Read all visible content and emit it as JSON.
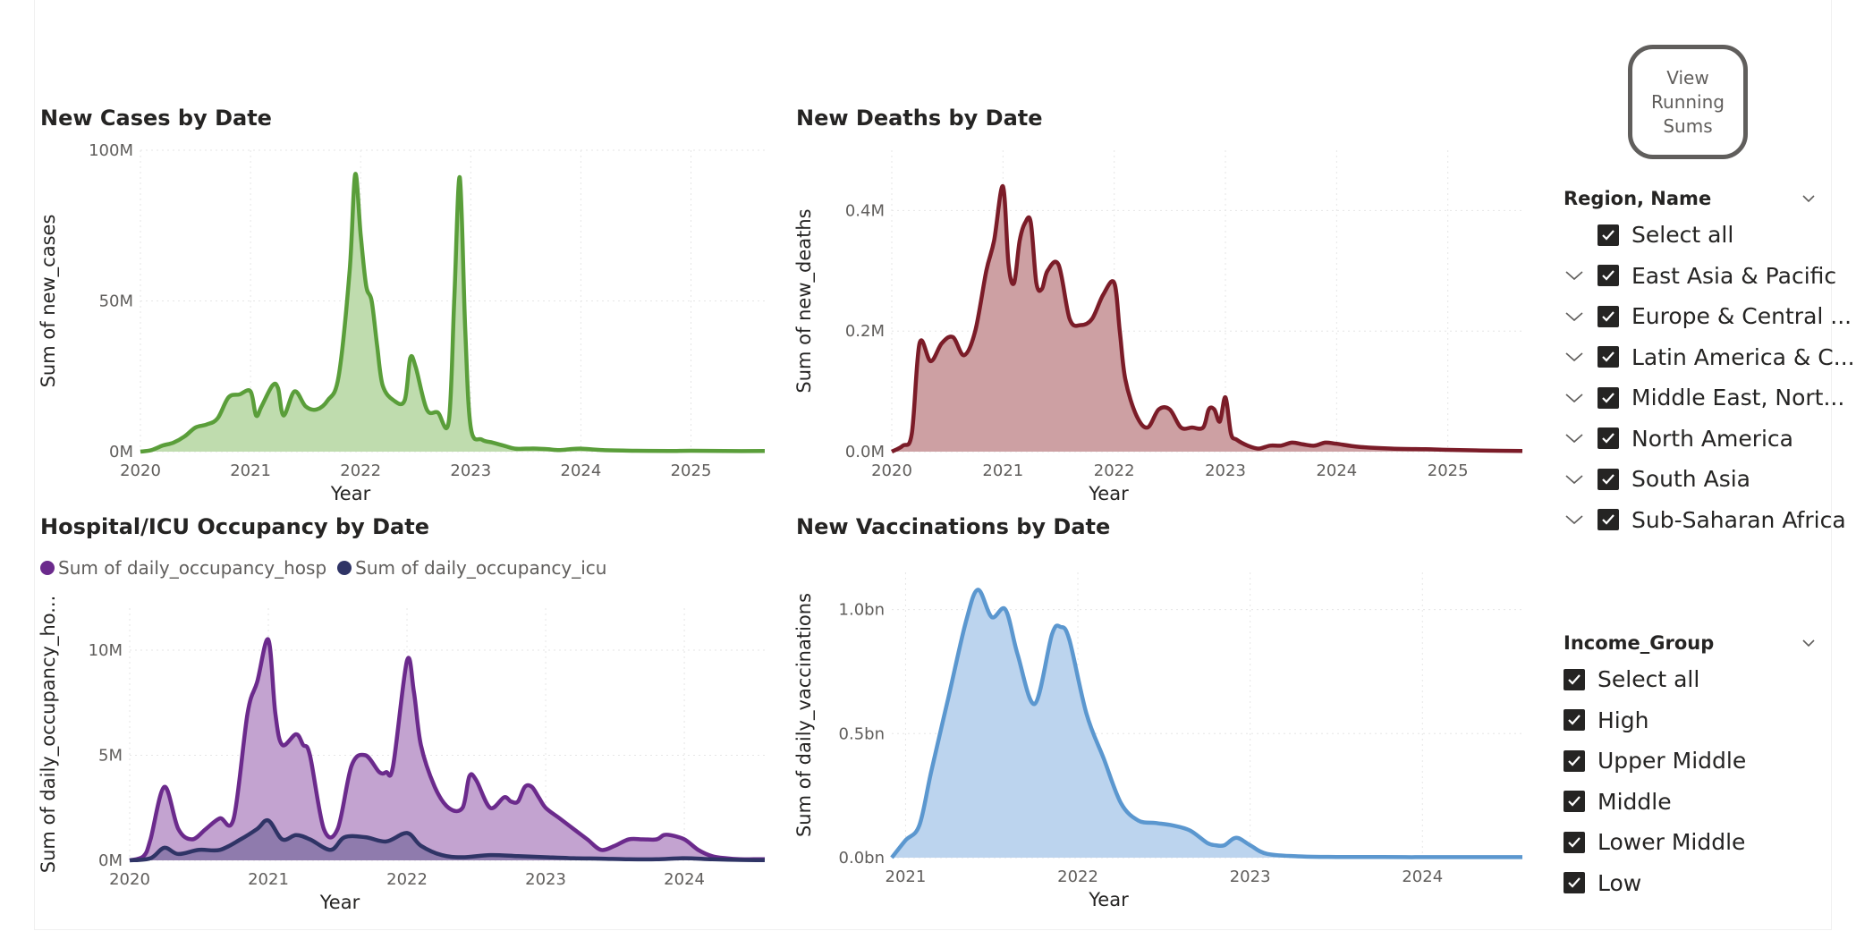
{
  "charts": {
    "cases": {
      "title": "New Cases by Date",
      "ylabel": "Sum of new_cases",
      "xlabel": "Year",
      "y_ticks": [
        "0M",
        "50M",
        "100M"
      ],
      "x_ticks": [
        "2020",
        "2021",
        "2022",
        "2023",
        "2024",
        "2025"
      ]
    },
    "deaths": {
      "title": "New Deaths by Date",
      "ylabel": "Sum of new_deaths",
      "xlabel": "Year",
      "y_ticks": [
        "0.0M",
        "0.2M",
        "0.4M"
      ],
      "x_ticks": [
        "2020",
        "2021",
        "2022",
        "2023",
        "2024",
        "2025"
      ]
    },
    "hosp": {
      "title": "Hospital/ICU Occupancy by Date",
      "ylabel": "Sum of daily_occupancy_ho...",
      "xlabel": "Year",
      "y_ticks": [
        "0M",
        "5M",
        "10M"
      ],
      "x_ticks": [
        "2020",
        "2021",
        "2022",
        "2023",
        "2024"
      ],
      "legend": [
        "Sum of daily_occupancy_hosp",
        "Sum of daily_occupancy_icu"
      ]
    },
    "vacc": {
      "title": "New Vaccinations by Date",
      "ylabel": "Sum of daily_vaccinations",
      "xlabel": "Year",
      "y_ticks": [
        "0.0bn",
        "0.5bn",
        "1.0bn"
      ],
      "x_ticks": [
        "2021",
        "2022",
        "2023",
        "2024"
      ]
    }
  },
  "colors": {
    "cases_line": "#5a9e3a",
    "cases_fill": "#bfdcae",
    "deaths_line": "#7b1c28",
    "deaths_fill": "#cda0a3",
    "hosp_line": "#6b2a8c",
    "hosp_fill": "#c3a3d0",
    "icu_line": "#2f3466",
    "icu_fill": "#8a77a8",
    "vacc_line": "#5b97cf",
    "vacc_fill": "#bcd4ee"
  },
  "view_button": {
    "label": "View\nRunning\nSums"
  },
  "region_slicer": {
    "title": "Region, Name",
    "select_all": "Select all",
    "items": [
      "East Asia & Pacific",
      "Europe & Central ...",
      "Latin America & C...",
      "Middle East, Nort...",
      "North America",
      "South Asia",
      "Sub-Saharan Africa"
    ]
  },
  "income_slicer": {
    "title": "Income_Group",
    "select_all": "Select all",
    "items": [
      "High",
      "Upper Middle",
      "Middle",
      "Lower Middle",
      "Low"
    ]
  },
  "chart_data": [
    {
      "type": "area",
      "title": "New Cases by Date",
      "xlabel": "Year",
      "ylabel": "Sum of new_cases",
      "xlim": [
        2020.0,
        2025.67
      ],
      "ylim": [
        0,
        100
      ],
      "y_unit": "M",
      "series": [
        {
          "name": "",
          "x": [
            2020.0,
            2020.1,
            2020.2,
            2020.3,
            2020.4,
            2020.5,
            2020.6,
            2020.7,
            2020.8,
            2020.9,
            2021.0,
            2021.05,
            2021.1,
            2021.2,
            2021.25,
            2021.3,
            2021.4,
            2021.5,
            2021.6,
            2021.7,
            2021.8,
            2021.9,
            2021.95,
            2022.0,
            2022.05,
            2022.1,
            2022.15,
            2022.2,
            2022.3,
            2022.4,
            2022.45,
            2022.5,
            2022.6,
            2022.7,
            2022.8,
            2022.85,
            2022.9,
            2022.95,
            2023.0,
            2023.1,
            2023.2,
            2023.3,
            2023.4,
            2023.5,
            2023.6,
            2023.7,
            2023.8,
            2023.9,
            2024.0,
            2024.2,
            2024.5,
            2024.8,
            2025.0,
            2025.3,
            2025.67
          ],
          "y": [
            0,
            0.5,
            2,
            3,
            5,
            8,
            9,
            11,
            18,
            19,
            20,
            12,
            15,
            22,
            21,
            12,
            20,
            15,
            14,
            17,
            25,
            60,
            92,
            72,
            55,
            50,
            35,
            22,
            17,
            17,
            31,
            28,
            14,
            13,
            10,
            50,
            91,
            40,
            8,
            4,
            3,
            2,
            1,
            1,
            1,
            0.8,
            0.5,
            0.8,
            1,
            0.5,
            0.3,
            0.2,
            0.3,
            0.2,
            0.2
          ]
        }
      ]
    },
    {
      "type": "area",
      "title": "New Deaths by Date",
      "xlabel": "Year",
      "ylabel": "Sum of new_deaths",
      "xlim": [
        2020.0,
        2025.67
      ],
      "ylim": [
        0,
        0.5
      ],
      "y_unit": "M",
      "series": [
        {
          "name": "",
          "x": [
            2020.0,
            2020.1,
            2020.18,
            2020.25,
            2020.35,
            2020.45,
            2020.55,
            2020.65,
            2020.75,
            2020.85,
            2020.92,
            2021.0,
            2021.05,
            2021.1,
            2021.15,
            2021.2,
            2021.25,
            2021.3,
            2021.35,
            2021.4,
            2021.5,
            2021.6,
            2021.7,
            2021.8,
            2021.9,
            2022.0,
            2022.05,
            2022.1,
            2022.2,
            2022.3,
            2022.4,
            2022.5,
            2022.6,
            2022.7,
            2022.8,
            2022.85,
            2022.9,
            2022.95,
            2023.0,
            2023.05,
            2023.1,
            2023.2,
            2023.3,
            2023.4,
            2023.5,
            2023.6,
            2023.7,
            2023.8,
            2023.9,
            2024.0,
            2024.2,
            2024.5,
            2024.8,
            2025.0,
            2025.3,
            2025.67
          ],
          "y": [
            0,
            0.01,
            0.03,
            0.18,
            0.15,
            0.18,
            0.19,
            0.16,
            0.2,
            0.3,
            0.35,
            0.44,
            0.31,
            0.28,
            0.35,
            0.38,
            0.38,
            0.28,
            0.27,
            0.3,
            0.31,
            0.22,
            0.21,
            0.22,
            0.26,
            0.28,
            0.2,
            0.12,
            0.06,
            0.04,
            0.07,
            0.07,
            0.04,
            0.04,
            0.04,
            0.07,
            0.07,
            0.05,
            0.09,
            0.03,
            0.02,
            0.01,
            0.005,
            0.01,
            0.01,
            0.015,
            0.012,
            0.01,
            0.015,
            0.013,
            0.008,
            0.005,
            0.004,
            0.003,
            0.002,
            0.001
          ]
        }
      ]
    },
    {
      "type": "area",
      "title": "Hospital/ICU Occupancy by Date",
      "xlabel": "Year",
      "ylabel": "Sum of daily_occupancy_ho...",
      "xlim": [
        2020.0,
        2024.58
      ],
      "ylim": [
        0,
        12
      ],
      "y_unit": "M",
      "series": [
        {
          "name": "Sum of daily_occupancy_hosp",
          "x": [
            2020.0,
            2020.1,
            2020.15,
            2020.25,
            2020.35,
            2020.45,
            2020.55,
            2020.65,
            2020.75,
            2020.85,
            2020.92,
            2021.0,
            2021.05,
            2021.1,
            2021.2,
            2021.25,
            2021.3,
            2021.4,
            2021.5,
            2021.6,
            2021.7,
            2021.8,
            2021.85,
            2021.9,
            2022.0,
            2022.05,
            2022.1,
            2022.2,
            2022.3,
            2022.4,
            2022.45,
            2022.5,
            2022.6,
            2022.7,
            2022.75,
            2022.8,
            2022.85,
            2022.9,
            2022.95,
            2023.0,
            2023.1,
            2023.2,
            2023.3,
            2023.4,
            2023.5,
            2023.6,
            2023.7,
            2023.8,
            2023.85,
            2023.9,
            2024.0,
            2024.1,
            2024.2,
            2024.3,
            2024.4,
            2024.5,
            2024.58
          ],
          "y": [
            0,
            0.2,
            1,
            3.5,
            1.5,
            1,
            1.5,
            2,
            2,
            7,
            8.5,
            10.5,
            7,
            5.5,
            6,
            5.5,
            5,
            1.5,
            1.5,
            4.5,
            5,
            4.2,
            4.2,
            4.5,
            9.5,
            8,
            5.5,
            3.5,
            2.5,
            2.5,
            4,
            3.8,
            2.5,
            3,
            2.8,
            2.8,
            3.5,
            3.5,
            3,
            2.5,
            2,
            1.5,
            1,
            0.5,
            0.7,
            1,
            1,
            1,
            1.2,
            1.2,
            1,
            0.5,
            0.2,
            0.1,
            0.05,
            0.05,
            0.05
          ]
        },
        {
          "name": "Sum of daily_occupancy_icu",
          "x": [
            2020.0,
            2020.15,
            2020.25,
            2020.35,
            2020.5,
            2020.65,
            2020.8,
            2020.92,
            2021.0,
            2021.1,
            2021.2,
            2021.3,
            2021.45,
            2021.55,
            2021.7,
            2021.85,
            2022.0,
            2022.1,
            2022.25,
            2022.4,
            2022.6,
            2022.8,
            2023.0,
            2023.2,
            2023.4,
            2023.6,
            2023.8,
            2024.0,
            2024.2,
            2024.4,
            2024.58
          ],
          "y": [
            0,
            0.1,
            0.6,
            0.3,
            0.5,
            0.5,
            1,
            1.5,
            1.9,
            1,
            1.2,
            1,
            0.5,
            1.1,
            1.1,
            0.9,
            1.3,
            0.7,
            0.25,
            0.15,
            0.25,
            0.2,
            0.15,
            0.1,
            0.08,
            0.05,
            0.05,
            0.1,
            0.05,
            0.02,
            0.01
          ]
        }
      ]
    },
    {
      "type": "area",
      "title": "New Vaccinations by Date",
      "xlabel": "Year",
      "ylabel": "Sum of daily_vaccinations",
      "xlim": [
        2020.92,
        2024.58
      ],
      "ylim": [
        0,
        1.15
      ],
      "y_unit": "bn",
      "series": [
        {
          "name": "",
          "x": [
            2020.92,
            2021.0,
            2021.08,
            2021.15,
            2021.25,
            2021.35,
            2021.42,
            2021.5,
            2021.58,
            2021.65,
            2021.75,
            2021.85,
            2021.9,
            2021.95,
            2022.05,
            2022.15,
            2022.25,
            2022.35,
            2022.45,
            2022.55,
            2022.65,
            2022.75,
            2022.8,
            2022.85,
            2022.92,
            2023.0,
            2023.1,
            2023.3,
            2023.5,
            2023.7,
            2023.9,
            2024.0,
            2024.2,
            2024.4,
            2024.58
          ],
          "y": [
            0,
            0.07,
            0.13,
            0.35,
            0.65,
            0.95,
            1.08,
            0.97,
            1.0,
            0.82,
            0.62,
            0.9,
            0.93,
            0.88,
            0.58,
            0.4,
            0.22,
            0.15,
            0.14,
            0.13,
            0.11,
            0.06,
            0.05,
            0.05,
            0.08,
            0.05,
            0.015,
            0.005,
            0.003,
            0.003,
            0.002,
            0.002,
            0.002,
            0.002,
            0.002
          ]
        }
      ]
    }
  ]
}
